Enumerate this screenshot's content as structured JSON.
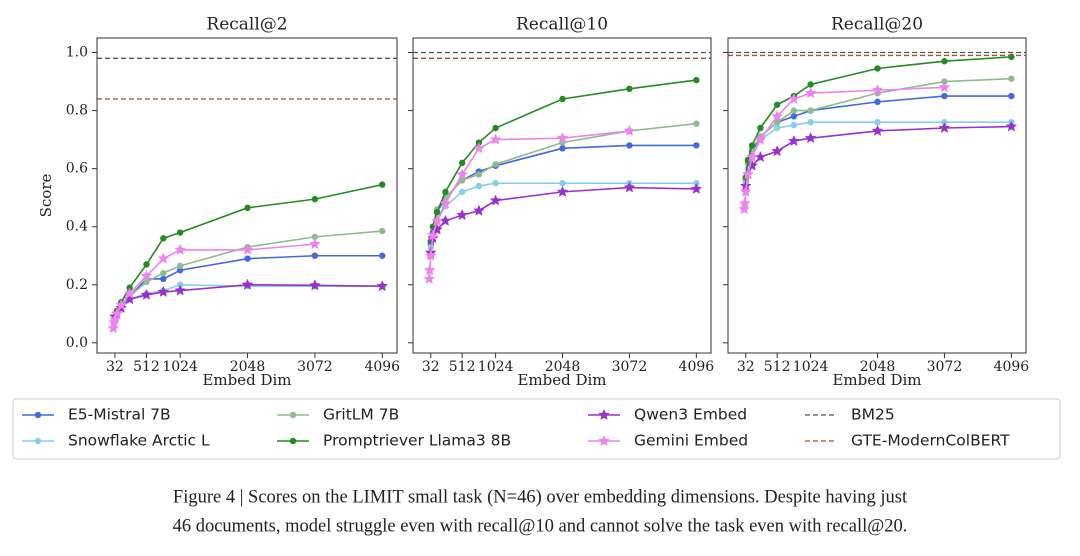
{
  "chart_data": {
    "type": "line",
    "panels": [
      "Recall@2",
      "Recall@10",
      "Recall@20"
    ],
    "xlabel": "Embed Dim",
    "ylabel": "Score",
    "xlim": [
      -240,
      4320
    ],
    "xticks": [
      32,
      512,
      1024,
      2048,
      3072,
      4096
    ],
    "ylim": [
      -0.035,
      1.05
    ],
    "yticks": [
      {
        "value": 0,
        "label": "0.0"
      },
      0.2,
      0.4,
      0.6,
      0.8,
      {
        "value": 1,
        "label": "1.0"
      }
    ],
    "series": [
      {
        "name": "E5-Mistral 7B",
        "color": "#4169e1",
        "marker": "circle",
        "x": [
          32,
          64,
          128,
          256,
          512,
          768,
          1024,
          2048,
          3072,
          4096
        ],
        "values": [
          [
            0.08,
            0.1,
            0.12,
            0.16,
            0.22,
            0.22,
            0.25,
            0.29,
            0.3,
            0.3
          ],
          [
            0.34,
            0.38,
            0.45,
            0.5,
            0.56,
            0.59,
            0.61,
            0.67,
            0.68,
            0.68
          ],
          [
            0.56,
            0.62,
            0.66,
            0.71,
            0.76,
            0.78,
            0.8,
            0.83,
            0.85,
            0.85
          ]
        ]
      },
      {
        "name": "Snowflake Arctic L",
        "color": "#87ceeb",
        "marker": "circle",
        "x": [
          32,
          64,
          128,
          256,
          512,
          768,
          1024,
          2048,
          3072,
          4096
        ],
        "values": [
          [
            0.08,
            0.1,
            0.12,
            0.15,
            0.17,
            0.18,
            0.2,
            0.195,
            0.195,
            0.195
          ],
          [
            0.33,
            0.37,
            0.42,
            0.47,
            0.52,
            0.54,
            0.55,
            0.55,
            0.55,
            0.55
          ],
          [
            0.55,
            0.6,
            0.65,
            0.7,
            0.74,
            0.75,
            0.76,
            0.76,
            0.76,
            0.76
          ]
        ]
      },
      {
        "name": "GritLM 7B",
        "color": "#8fbc8f",
        "marker": "circle",
        "x": [
          32,
          64,
          128,
          256,
          512,
          768,
          1024,
          2048,
          3072,
          4096
        ],
        "values": [
          [
            0.08,
            0.1,
            0.12,
            0.16,
            0.21,
            0.24,
            0.265,
            0.33,
            0.365,
            0.385
          ],
          [
            0.35,
            0.4,
            0.46,
            0.5,
            0.56,
            0.58,
            0.615,
            0.69,
            0.73,
            0.755
          ],
          [
            0.56,
            0.62,
            0.67,
            0.71,
            0.76,
            0.8,
            0.8,
            0.86,
            0.9,
            0.91
          ]
        ]
      },
      {
        "name": "Promptriever Llama3 8B",
        "color": "#228b22",
        "marker": "circle",
        "x": [
          32,
          64,
          128,
          256,
          512,
          768,
          1024,
          2048,
          3072,
          4096
        ],
        "values": [
          [
            0.09,
            0.11,
            0.14,
            0.19,
            0.27,
            0.36,
            0.38,
            0.465,
            0.495,
            0.545
          ],
          [
            0.35,
            0.4,
            0.45,
            0.52,
            0.62,
            0.69,
            0.74,
            0.84,
            0.875,
            0.905
          ],
          [
            0.57,
            0.63,
            0.68,
            0.74,
            0.82,
            0.85,
            0.89,
            0.945,
            0.97,
            0.985
          ]
        ]
      },
      {
        "name": "Qwen3 Embed",
        "color": "#9932cc",
        "marker": "star",
        "x": [
          32,
          64,
          128,
          256,
          512,
          768,
          1024,
          2048,
          3072,
          4096
        ],
        "values": [
          [
            0.09,
            0.1,
            0.12,
            0.15,
            0.165,
            0.175,
            0.18,
            0.2,
            0.198,
            0.195
          ],
          [
            0.31,
            0.36,
            0.39,
            0.42,
            0.44,
            0.455,
            0.49,
            0.52,
            0.535,
            0.53
          ],
          [
            0.54,
            0.58,
            0.61,
            0.64,
            0.66,
            0.695,
            0.705,
            0.73,
            0.74,
            0.745
          ]
        ]
      },
      {
        "name": "Gemini Embed",
        "color": "#ee82ee",
        "marker": "star",
        "x": [
          8,
          16,
          32,
          64,
          128,
          256,
          512,
          768,
          1024,
          2048,
          3072
        ],
        "values": [
          [
            0.05,
            0.07,
            0.08,
            0.1,
            0.13,
            0.17,
            0.23,
            0.29,
            0.32,
            0.32,
            0.34
          ],
          [
            0.22,
            0.25,
            0.3,
            0.37,
            0.42,
            0.48,
            0.58,
            0.67,
            0.7,
            0.705,
            0.73
          ],
          [
            0.46,
            0.48,
            0.52,
            0.58,
            0.64,
            0.7,
            0.78,
            0.84,
            0.86,
            0.87,
            0.88
          ]
        ]
      },
      {
        "name": "BM25",
        "color": "#555555",
        "marker": "dashed",
        "values": [
          0.98,
          1.0,
          1.0
        ]
      },
      {
        "name": "GTE-ModernColBERT",
        "color": "#a0522d",
        "marker": "dashed",
        "values": [
          0.84,
          0.98,
          0.99
        ]
      }
    ],
    "caption": [
      "Figure 4 | Scores on the LIMIT small task (N=46) over embedding dimensions. Despite having just",
      "46 documents, model struggle even with recall@10 and cannot solve the task even with recall@20."
    ]
  }
}
